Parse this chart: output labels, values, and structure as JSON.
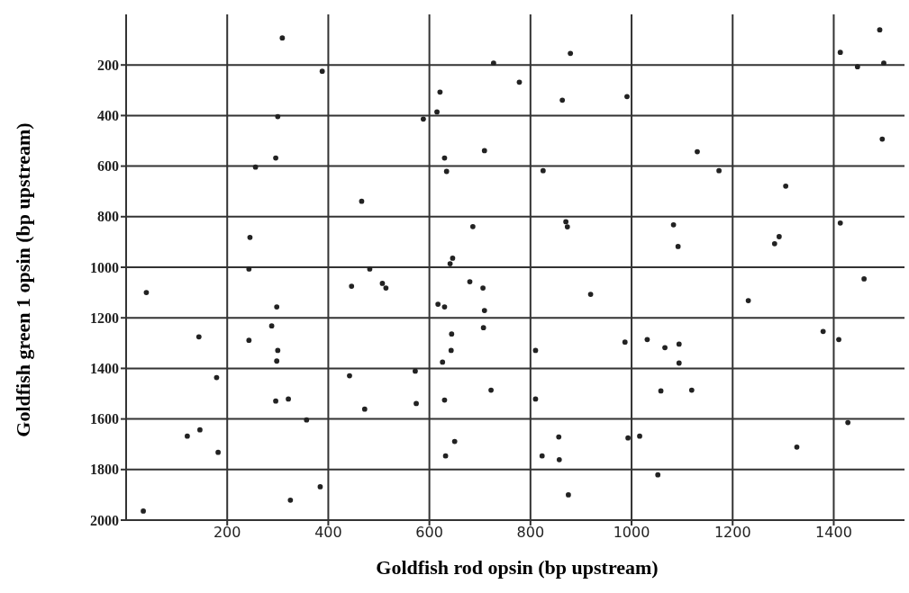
{
  "chart_data": {
    "type": "scatter",
    "xlabel": "Goldfish rod opsin (bp upstream)",
    "ylabel": "Goldfish green 1 opsin (bp upstream)",
    "xlim": [
      0,
      1540
    ],
    "ylim": [
      2000,
      0
    ],
    "xticks": [
      200,
      400,
      600,
      800,
      1000,
      1200,
      1400
    ],
    "yticks": [
      200,
      400,
      600,
      800,
      1000,
      1200,
      1400,
      1600,
      1800,
      2000
    ],
    "grid": true,
    "marker": "circle",
    "series": [
      {
        "color": "#222222",
        "x": [
          300,
          296,
          309,
          388,
          256,
          466,
          245,
          243,
          482,
          879,
          727,
          778,
          621,
          863,
          991,
          615,
          588,
          709,
          630,
          634,
          825,
          686,
          870,
          873,
          646,
          641,
          1491,
          1413,
          1447,
          1499,
          1130,
          1173,
          1496,
          1305,
          1083,
          1092,
          1292,
          1283,
          1413,
          40,
          298,
          446,
          507,
          514,
          144,
          288,
          243,
          300,
          298,
          179,
          296,
          321,
          442,
          472,
          357,
          121,
          146,
          182,
          384,
          325,
          34,
          680,
          706,
          617,
          630,
          709,
          919,
          644,
          707,
          643,
          626,
          810,
          987,
          1031,
          572,
          574,
          630,
          722,
          810,
          856,
          823,
          857,
          993,
          1016,
          650,
          632,
          875,
          1460,
          1231,
          1379,
          1410,
          1066,
          1094,
          1094,
          1058,
          1119,
          1428,
          1327,
          1052
        ],
        "values": [
          404,
          568,
          93,
          225,
          604,
          739,
          882,
          1007,
          1007,
          154,
          193,
          268,
          307,
          339,
          325,
          386,
          414,
          539,
          568,
          621,
          618,
          839,
          820,
          840,
          964,
          986,
          61,
          150,
          207,
          193,
          543,
          618,
          493,
          679,
          832,
          918,
          879,
          907,
          825,
          1100,
          1157,
          1075,
          1064,
          1082,
          1275,
          1232,
          1289,
          1329,
          1371,
          1436,
          1529,
          1521,
          1429,
          1561,
          1604,
          1668,
          1643,
          1732,
          1868,
          1921,
          1964,
          1057,
          1082,
          1146,
          1157,
          1171,
          1107,
          1264,
          1239,
          1329,
          1375,
          1329,
          1296,
          1286,
          1411,
          1539,
          1525,
          1486,
          1521,
          1671,
          1746,
          1761,
          1675,
          1668,
          1689,
          1746,
          1900,
          1046,
          1132,
          1254,
          1286,
          1318,
          1304,
          1379,
          1489,
          1486,
          1614,
          1711,
          1821
        ]
      }
    ]
  }
}
